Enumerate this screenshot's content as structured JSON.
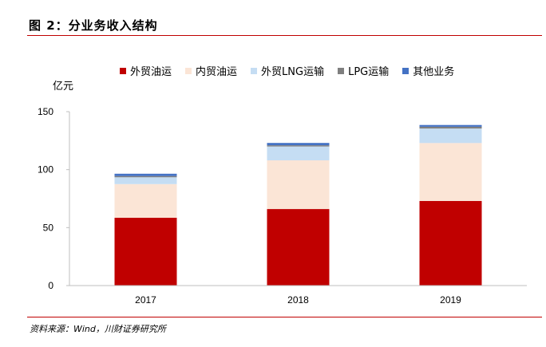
{
  "figure": {
    "title": "图 2：分业务收入结构",
    "source": "资料来源：Wind，川财证券研究所"
  },
  "chart_data": {
    "type": "bar",
    "stacked": true,
    "categories": [
      "2017",
      "2018",
      "2019"
    ],
    "ylabel": "亿元",
    "ylim": [
      0,
      150
    ],
    "yticks": [
      0,
      50,
      100,
      150
    ],
    "grid": false,
    "legend_position": "top",
    "series": [
      {
        "name": "外贸油运",
        "color": "#c00000",
        "values": [
          58.5,
          66.0,
          73.0
        ]
      },
      {
        "name": "内贸油运",
        "color": "#fbe5d6",
        "values": [
          29.0,
          42.0,
          50.0
        ]
      },
      {
        "name": "外贸LNG运输",
        "color": "#c5ddf3",
        "values": [
          6.0,
          12.0,
          12.5
        ]
      },
      {
        "name": "LPG运输",
        "color": "#7f7f7f",
        "values": [
          1.0,
          1.0,
          1.5
        ]
      },
      {
        "name": "其他业务",
        "color": "#4472c4",
        "values": [
          2.0,
          2.0,
          1.5
        ]
      }
    ]
  }
}
